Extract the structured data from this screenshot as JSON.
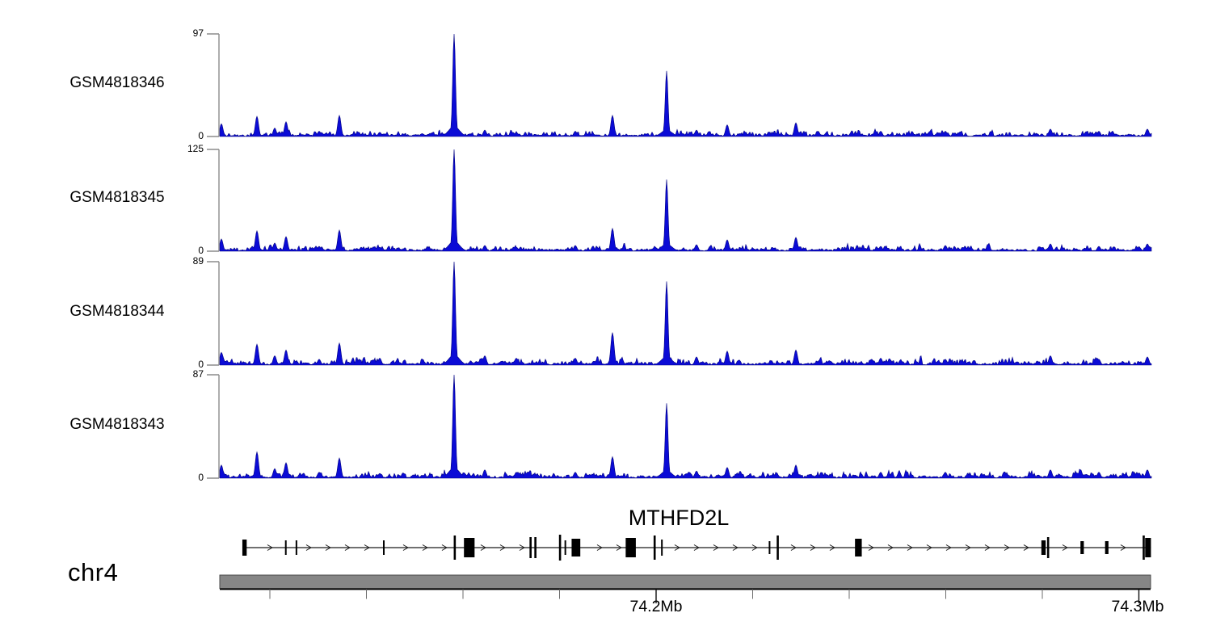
{
  "chart_data": {
    "type": "area",
    "description": "Genome browser coverage tracks (4 samples) over chr4 with MTHFD2L gene model",
    "series_color": "#0b0bd6",
    "series_edge_color": "#000080",
    "x_range_mb": [
      74.1096,
      74.3026
    ],
    "tracks": [
      {
        "label": "GSM4818346",
        "ymax": 97,
        "ymin": 0
      },
      {
        "label": "GSM4818345",
        "ymax": 125,
        "ymin": 0
      },
      {
        "label": "GSM4818344",
        "ymax": 89,
        "ymin": 0
      },
      {
        "label": "GSM4818343",
        "ymax": 87,
        "ymin": 0
      }
    ],
    "noise_base": [
      3.2,
      4.0,
      3.6,
      3.0
    ],
    "peaks": [
      {
        "mb": 74.11,
        "values": [
          12,
          15,
          11,
          11
        ]
      },
      {
        "mb": 74.1173,
        "values": [
          19,
          25,
          18,
          22
        ]
      },
      {
        "mb": 74.121,
        "values": [
          8,
          10,
          8,
          8
        ]
      },
      {
        "mb": 74.1233,
        "values": [
          14,
          18,
          13,
          13
        ]
      },
      {
        "mb": 74.1302,
        "values": [
          5,
          6,
          5,
          5
        ]
      },
      {
        "mb": 74.1344,
        "values": [
          20,
          26,
          19,
          17
        ]
      },
      {
        "mb": 74.1428,
        "values": [
          4,
          5,
          6,
          4
        ]
      },
      {
        "mb": 74.1582,
        "values": [
          97,
          125,
          89,
          87
        ]
      },
      {
        "mb": 74.1645,
        "values": [
          6,
          7,
          8,
          7
        ]
      },
      {
        "mb": 74.171,
        "values": [
          4,
          5,
          6,
          5
        ]
      },
      {
        "mb": 74.1833,
        "values": [
          5,
          7,
          6,
          5
        ]
      },
      {
        "mb": 74.191,
        "values": [
          20,
          28,
          28,
          18
        ]
      },
      {
        "mb": 74.2022,
        "values": [
          62,
          88,
          72,
          63
        ]
      },
      {
        "mb": 74.2084,
        "values": [
          6,
          8,
          7,
          6
        ]
      },
      {
        "mb": 74.2147,
        "values": [
          11,
          14,
          12,
          9
        ]
      },
      {
        "mb": 74.229,
        "values": [
          13,
          17,
          13,
          11
        ]
      },
      {
        "mb": 74.2465,
        "values": [
          5,
          6,
          6,
          5
        ]
      },
      {
        "mb": 74.2599,
        "values": [
          5,
          7,
          5,
          5
        ]
      },
      {
        "mb": 74.2817,
        "values": [
          7,
          9,
          8,
          7
        ]
      },
      {
        "mb": 74.2917,
        "values": [
          5,
          6,
          5,
          5
        ]
      },
      {
        "mb": 74.3017,
        "values": [
          7,
          9,
          7,
          7
        ]
      }
    ],
    "gene_track": {
      "name": "MTHFD2L",
      "strand": "+",
      "features": [
        {
          "kind": "box",
          "mb": 74.1143,
          "w": 0.0009,
          "h": 20
        },
        {
          "kind": "bar",
          "mb": 74.1233,
          "h": 18
        },
        {
          "kind": "bar",
          "mb": 74.1255,
          "h": 18
        },
        {
          "kind": "bar",
          "mb": 74.1436,
          "h": 18
        },
        {
          "kind": "tallbar",
          "mb": 74.1583,
          "h": 30
        },
        {
          "kind": "box",
          "mb": 74.1602,
          "w": 0.0022,
          "h": 24
        },
        {
          "kind": "tallbar",
          "mb": 74.174,
          "h": 26
        },
        {
          "kind": "tallbar",
          "mb": 74.175,
          "h": 26
        },
        {
          "kind": "tallbar",
          "mb": 74.1801,
          "h": 32
        },
        {
          "kind": "bar",
          "mb": 74.1812,
          "h": 18
        },
        {
          "kind": "box",
          "mb": 74.1825,
          "w": 0.0018,
          "h": 22
        },
        {
          "kind": "box",
          "mb": 74.1937,
          "w": 0.0021,
          "h": 24
        },
        {
          "kind": "tallbar",
          "mb": 74.1997,
          "h": 30
        },
        {
          "kind": "bar",
          "mb": 74.2012,
          "h": 20
        },
        {
          "kind": "bar",
          "mb": 74.2235,
          "h": 16
        },
        {
          "kind": "tallbar",
          "mb": 74.2252,
          "h": 30
        },
        {
          "kind": "box",
          "mb": 74.2412,
          "w": 0.0014,
          "h": 22
        },
        {
          "kind": "box",
          "mb": 74.2798,
          "w": 0.0009,
          "h": 18
        },
        {
          "kind": "tallbar",
          "mb": 74.2812,
          "h": 26
        },
        {
          "kind": "box",
          "mb": 74.2879,
          "w": 0.0007,
          "h": 16
        },
        {
          "kind": "box",
          "mb": 74.293,
          "w": 0.0007,
          "h": 16
        },
        {
          "kind": "tallbar",
          "mb": 74.301,
          "h": 30
        },
        {
          "kind": "box",
          "mb": 74.3013,
          "w": 0.0012,
          "h": 24
        }
      ]
    },
    "x_axis": {
      "chromosome": "chr4",
      "bar_color": "#868686",
      "major_ticks": [
        {
          "mb": 74.2,
          "label": "74.2Mb"
        },
        {
          "mb": 74.3,
          "label": "74.3Mb"
        }
      ],
      "minor_ticks_mb": [
        74.12,
        74.14,
        74.16,
        74.18,
        74.22,
        74.24,
        74.26,
        74.28
      ]
    }
  }
}
